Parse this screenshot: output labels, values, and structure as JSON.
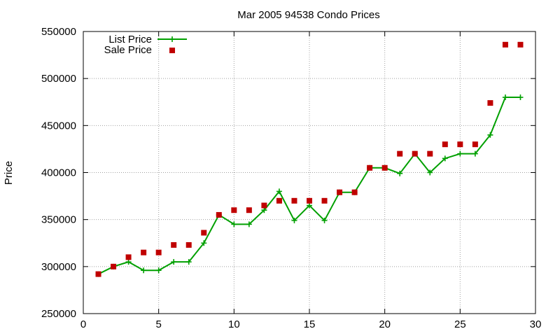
{
  "chart_data": {
    "type": "line",
    "title": "Mar 2005 94538 Condo Prices",
    "xlabel": "",
    "ylabel": "Price",
    "xlim": [
      0,
      30
    ],
    "ylim": [
      250000,
      550000
    ],
    "x_ticks": [
      0,
      5,
      10,
      15,
      20,
      25,
      30
    ],
    "y_ticks": [
      250000,
      300000,
      350000,
      400000,
      450000,
      500000,
      550000
    ],
    "grid": true,
    "legend_position": "top-left",
    "series": [
      {
        "name": "List Price",
        "style": "line-with-plus-markers",
        "color": "#00a000",
        "x": [
          1,
          2,
          3,
          4,
          5,
          6,
          7,
          8,
          9,
          10,
          11,
          12,
          13,
          14,
          15,
          16,
          17,
          18,
          19,
          20,
          21,
          22,
          23,
          24,
          25,
          26,
          27,
          28,
          29
        ],
        "values": [
          292000,
          300000,
          305000,
          296000,
          296000,
          305000,
          305000,
          325000,
          355000,
          345000,
          345000,
          360000,
          380000,
          349000,
          365000,
          349000,
          379000,
          379000,
          405000,
          405000,
          399000,
          420000,
          400000,
          415000,
          420000,
          420000,
          440000,
          480000,
          480000
        ]
      },
      {
        "name": "Sale Price",
        "style": "square-markers",
        "color": "#c00000",
        "x": [
          1,
          2,
          3,
          4,
          5,
          6,
          7,
          8,
          9,
          10,
          11,
          12,
          13,
          14,
          15,
          16,
          17,
          18,
          19,
          20,
          21,
          22,
          23,
          24,
          25,
          26,
          27,
          28,
          29
        ],
        "values": [
          292000,
          300000,
          310000,
          315000,
          315000,
          323000,
          323000,
          336000,
          355000,
          360000,
          360000,
          365000,
          370000,
          370000,
          370000,
          370000,
          379000,
          379000,
          405000,
          405000,
          420000,
          420000,
          420000,
          430000,
          430000,
          430000,
          474000,
          536000,
          536000
        ]
      }
    ]
  }
}
